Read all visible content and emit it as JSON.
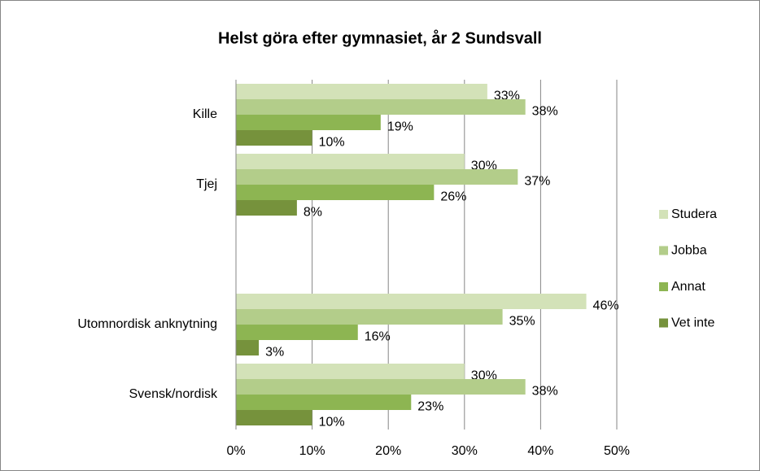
{
  "chart_data": {
    "type": "hbar",
    "title": "Helst göra efter gymnasiet, år 2 Sundsvall",
    "categories": [
      "Kille",
      "Tjej",
      null,
      "Utomnordisk anknytning",
      "Svensk/nordisk"
    ],
    "series": [
      {
        "name": "Studera",
        "color": "#d3e2b8",
        "values": [
          33,
          30,
          null,
          46,
          30
        ],
        "value_labels": [
          "33%",
          "30%",
          null,
          "46%",
          "30%"
        ]
      },
      {
        "name": "Jobba",
        "color": "#b3cd8a",
        "values": [
          38,
          37,
          null,
          35,
          38
        ],
        "value_labels": [
          "38%",
          "37%",
          null,
          "35%",
          "38%"
        ]
      },
      {
        "name": "Annat",
        "color": "#8db552",
        "values": [
          19,
          26,
          null,
          16,
          23
        ],
        "value_labels": [
          "19%",
          "26%",
          null,
          "16%",
          "23%"
        ]
      },
      {
        "name": "Vet inte",
        "color": "#76923c",
        "values": [
          10,
          8,
          null,
          3,
          10
        ],
        "value_labels": [
          "10%",
          "8%",
          null,
          "3%",
          "10%"
        ]
      }
    ],
    "xlim": [
      0,
      50
    ],
    "xticks": [
      {
        "value": 0,
        "label": "0%"
      },
      {
        "value": 10,
        "label": "10%"
      },
      {
        "value": 20,
        "label": "20%"
      },
      {
        "value": 30,
        "label": "30%"
      },
      {
        "value": 40,
        "label": "40%"
      },
      {
        "value": 50,
        "label": "50%"
      }
    ],
    "grid": true,
    "legend": "right"
  }
}
